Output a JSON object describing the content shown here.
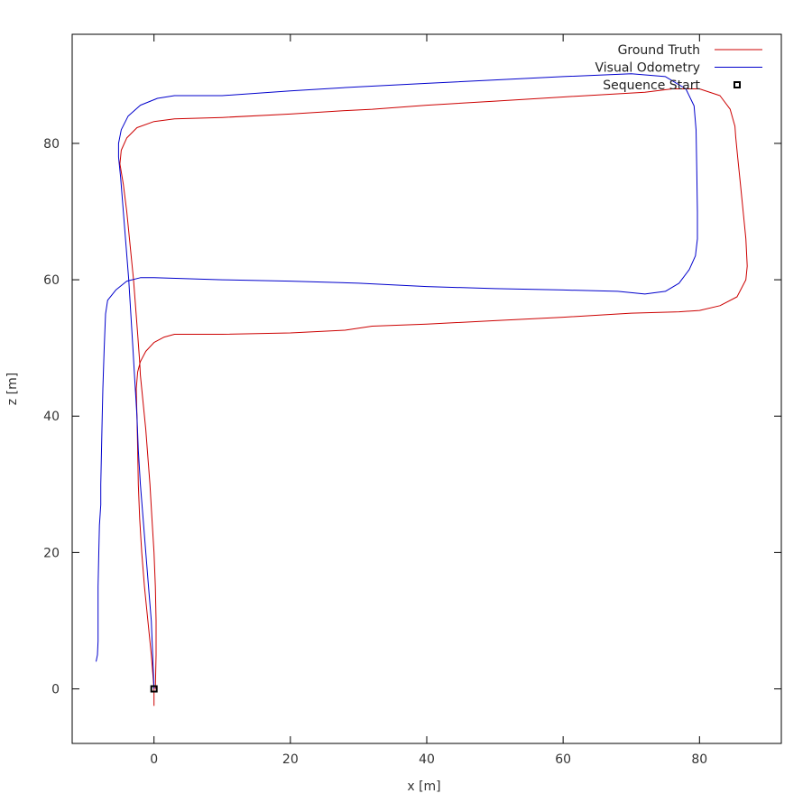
{
  "chart_data": {
    "type": "line",
    "title": "",
    "xlabel": "x [m]",
    "ylabel": "z [m]",
    "xlim": [
      -12,
      92
    ],
    "ylim": [
      -8,
      96
    ],
    "xticks": [
      0,
      20,
      40,
      60,
      80
    ],
    "yticks": [
      0,
      20,
      40,
      60,
      80
    ],
    "grid": false,
    "legend_position": "top-right",
    "series": [
      {
        "name": "Ground Truth",
        "color": "#cc0000",
        "points": [
          [
            0.0,
            -2.5
          ],
          [
            0.0,
            0.0
          ],
          [
            -0.4,
            5.0
          ],
          [
            -0.9,
            10.0
          ],
          [
            -1.4,
            15.0
          ],
          [
            -1.8,
            20.0
          ],
          [
            -2.1,
            25.0
          ],
          [
            -2.3,
            30.0
          ],
          [
            -2.4,
            35.0
          ],
          [
            -2.5,
            40.0
          ],
          [
            -2.6,
            44.0
          ],
          [
            -2.4,
            46.5
          ],
          [
            -2.0,
            48.0
          ],
          [
            -1.2,
            49.5
          ],
          [
            0.0,
            50.8
          ],
          [
            1.5,
            51.6
          ],
          [
            3.0,
            52.0
          ],
          [
            10.0,
            52.0
          ],
          [
            20.0,
            52.2
          ],
          [
            28.0,
            52.6
          ],
          [
            32.0,
            53.2
          ],
          [
            40.0,
            53.5
          ],
          [
            50.0,
            54.0
          ],
          [
            60.0,
            54.5
          ],
          [
            70.0,
            55.1
          ],
          [
            77.0,
            55.3
          ],
          [
            80.0,
            55.5
          ],
          [
            83.0,
            56.2
          ],
          [
            85.5,
            57.5
          ],
          [
            86.8,
            60.0
          ],
          [
            87.0,
            62.0
          ],
          [
            86.8,
            66.0
          ],
          [
            86.4,
            70.0
          ],
          [
            86.0,
            74.0
          ],
          [
            85.6,
            78.0
          ],
          [
            85.3,
            81.0
          ],
          [
            85.2,
            82.5
          ],
          [
            84.5,
            85.0
          ],
          [
            83.0,
            87.0
          ],
          [
            80.0,
            88.0
          ],
          [
            76.0,
            88.0
          ],
          [
            72.0,
            87.5
          ],
          [
            60.0,
            86.8
          ],
          [
            50.0,
            86.2
          ],
          [
            40.0,
            85.6
          ],
          [
            32.0,
            85.0
          ],
          [
            28.0,
            84.8
          ],
          [
            20.0,
            84.3
          ],
          [
            10.0,
            83.8
          ],
          [
            3.0,
            83.6
          ],
          [
            0.0,
            83.2
          ],
          [
            -2.5,
            82.3
          ],
          [
            -4.0,
            80.8
          ],
          [
            -4.8,
            79.0
          ],
          [
            -5.0,
            77.0
          ],
          [
            -4.5,
            74.0
          ],
          [
            -4.0,
            70.0
          ],
          [
            -3.6,
            66.0
          ],
          [
            -3.2,
            62.0
          ],
          [
            -3.0,
            60.0
          ],
          [
            -2.7,
            56.0
          ],
          [
            -2.4,
            52.0
          ],
          [
            -2.1,
            48.0
          ],
          [
            -2.0,
            46.0
          ],
          [
            -1.6,
            42.0
          ],
          [
            -1.2,
            38.0
          ],
          [
            -0.9,
            34.0
          ],
          [
            -0.6,
            30.0
          ],
          [
            -0.3,
            25.0
          ],
          [
            0.0,
            20.0
          ],
          [
            0.2,
            15.0
          ],
          [
            0.3,
            10.0
          ],
          [
            0.3,
            5.0
          ],
          [
            0.2,
            0.0
          ]
        ]
      },
      {
        "name": "Visual Odometry",
        "color": "#0000cc",
        "points": [
          [
            0.0,
            0.0
          ],
          [
            -0.2,
            5.0
          ],
          [
            -0.4,
            10.0
          ],
          [
            -0.8,
            15.0
          ],
          [
            -1.2,
            20.0
          ],
          [
            -1.6,
            25.0
          ],
          [
            -2.0,
            30.0
          ],
          [
            -2.3,
            35.0
          ],
          [
            -2.5,
            40.0
          ],
          [
            -2.8,
            45.0
          ],
          [
            -3.1,
            50.0
          ],
          [
            -3.4,
            55.0
          ],
          [
            -3.7,
            60.0
          ],
          [
            -4.1,
            65.0
          ],
          [
            -4.5,
            70.0
          ],
          [
            -4.9,
            75.0
          ],
          [
            -5.2,
            78.0
          ],
          [
            -5.2,
            80.0
          ],
          [
            -4.8,
            82.0
          ],
          [
            -3.8,
            84.0
          ],
          [
            -2.0,
            85.6
          ],
          [
            0.5,
            86.6
          ],
          [
            3.0,
            87.0
          ],
          [
            10.0,
            87.0
          ],
          [
            20.0,
            87.7
          ],
          [
            30.0,
            88.3
          ],
          [
            40.0,
            88.8
          ],
          [
            50.0,
            89.3
          ],
          [
            60.0,
            89.8
          ],
          [
            70.0,
            90.2
          ],
          [
            75.0,
            89.8
          ],
          [
            78.0,
            88.0
          ],
          [
            79.2,
            85.5
          ],
          [
            79.5,
            82.0
          ],
          [
            79.6,
            76.0
          ],
          [
            79.7,
            70.0
          ],
          [
            79.7,
            66.0
          ],
          [
            79.4,
            63.5
          ],
          [
            78.5,
            61.5
          ],
          [
            77.0,
            59.5
          ],
          [
            75.0,
            58.3
          ],
          [
            72.0,
            57.9
          ],
          [
            68.0,
            58.3
          ],
          [
            60.0,
            58.5
          ],
          [
            50.0,
            58.7
          ],
          [
            40.0,
            59.0
          ],
          [
            30.0,
            59.5
          ],
          [
            20.0,
            59.8
          ],
          [
            10.0,
            60.0
          ],
          [
            0.0,
            60.3
          ],
          [
            -2.0,
            60.3
          ],
          [
            -4.0,
            59.8
          ],
          [
            -5.6,
            58.5
          ],
          [
            -6.8,
            57.0
          ],
          [
            -7.1,
            55.0
          ],
          [
            -7.3,
            50.0
          ],
          [
            -7.5,
            44.0
          ],
          [
            -7.6,
            40.0
          ],
          [
            -7.7,
            35.0
          ],
          [
            -7.8,
            30.0
          ],
          [
            -7.8,
            27.0
          ],
          [
            -8.0,
            24.0
          ],
          [
            -8.1,
            20.0
          ],
          [
            -8.2,
            15.0
          ],
          [
            -8.2,
            10.0
          ],
          [
            -8.2,
            7.0
          ],
          [
            -8.3,
            5.0
          ],
          [
            -8.5,
            4.0
          ]
        ]
      },
      {
        "name": "Sequence Start",
        "color": "#000000",
        "marker": "square",
        "points": [
          [
            0.0,
            0.0
          ]
        ]
      }
    ]
  }
}
